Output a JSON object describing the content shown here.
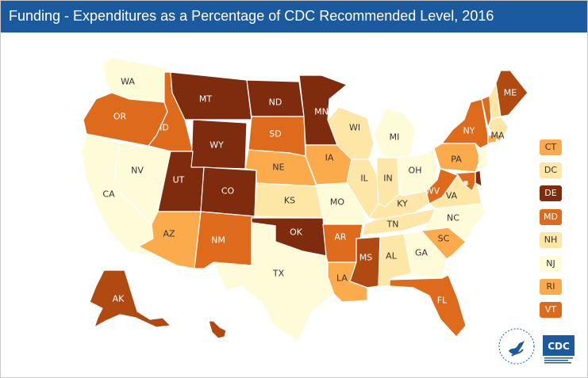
{
  "title": "Funding - Expenditures as a Percentage of CDC Recommended Level, 2016",
  "colors": {
    "title_bar": "#1c5aa0",
    "level_1": "#fdfbd8",
    "level_2": "#fde6a6",
    "level_3": "#fbab4c",
    "level_4": "#de6a1c",
    "level_5": "#b14a10",
    "level_6": "#7f2c0e"
  },
  "states": [
    {
      "abbr": "WA",
      "level": 1
    },
    {
      "abbr": "OR",
      "level": 4
    },
    {
      "abbr": "CA",
      "level": 1
    },
    {
      "abbr": "NV",
      "level": 1
    },
    {
      "abbr": "ID",
      "level": 4
    },
    {
      "abbr": "MT",
      "level": 6
    },
    {
      "abbr": "WY",
      "level": 6
    },
    {
      "abbr": "UT",
      "level": 6
    },
    {
      "abbr": "AZ",
      "level": 3
    },
    {
      "abbr": "CO",
      "level": 6
    },
    {
      "abbr": "NM",
      "level": 4
    },
    {
      "abbr": "ND",
      "level": 6
    },
    {
      "abbr": "SD",
      "level": 4
    },
    {
      "abbr": "NE",
      "level": 3
    },
    {
      "abbr": "KS",
      "level": 2
    },
    {
      "abbr": "OK",
      "level": 6
    },
    {
      "abbr": "TX",
      "level": 1
    },
    {
      "abbr": "MN",
      "level": 6
    },
    {
      "abbr": "IA",
      "level": 3
    },
    {
      "abbr": "MO",
      "level": 1
    },
    {
      "abbr": "AR",
      "level": 4
    },
    {
      "abbr": "LA",
      "level": 3
    },
    {
      "abbr": "WI",
      "level": 2
    },
    {
      "abbr": "IL",
      "level": 2
    },
    {
      "abbr": "MI",
      "level": 1
    },
    {
      "abbr": "IN",
      "level": 2
    },
    {
      "abbr": "OH",
      "level": 1
    },
    {
      "abbr": "KY",
      "level": 2
    },
    {
      "abbr": "TN",
      "level": 2
    },
    {
      "abbr": "MS",
      "level": 5
    },
    {
      "abbr": "AL",
      "level": 2
    },
    {
      "abbr": "GA",
      "level": 1
    },
    {
      "abbr": "FL",
      "level": 4
    },
    {
      "abbr": "SC",
      "level": 3
    },
    {
      "abbr": "NC",
      "level": 1
    },
    {
      "abbr": "VA",
      "level": 2
    },
    {
      "abbr": "WV",
      "level": 4
    },
    {
      "abbr": "PA",
      "level": 3
    },
    {
      "abbr": "NY",
      "level": 4
    },
    {
      "abbr": "VT",
      "level": 4
    },
    {
      "abbr": "NH",
      "level": 2
    },
    {
      "abbr": "ME",
      "level": 5
    },
    {
      "abbr": "MA",
      "level": 2
    },
    {
      "abbr": "RI",
      "level": 3
    },
    {
      "abbr": "CT",
      "level": 3
    },
    {
      "abbr": "NJ",
      "level": 1
    },
    {
      "abbr": "DE",
      "level": 6
    },
    {
      "abbr": "MD",
      "level": 4
    },
    {
      "abbr": "DC",
      "level": 2
    },
    {
      "abbr": "AK",
      "level": 5
    },
    {
      "abbr": "HI",
      "level": 5
    }
  ],
  "small_state_legend": [
    {
      "abbr": "CT",
      "level": 3
    },
    {
      "abbr": "DC",
      "level": 2
    },
    {
      "abbr": "DE",
      "level": 6
    },
    {
      "abbr": "MD",
      "level": 4
    },
    {
      "abbr": "NH",
      "level": 2
    },
    {
      "abbr": "NJ",
      "level": 1
    },
    {
      "abbr": "RI",
      "level": 3
    },
    {
      "abbr": "VT",
      "level": 4
    }
  ],
  "logos": {
    "cdc_text": "CDC"
  }
}
